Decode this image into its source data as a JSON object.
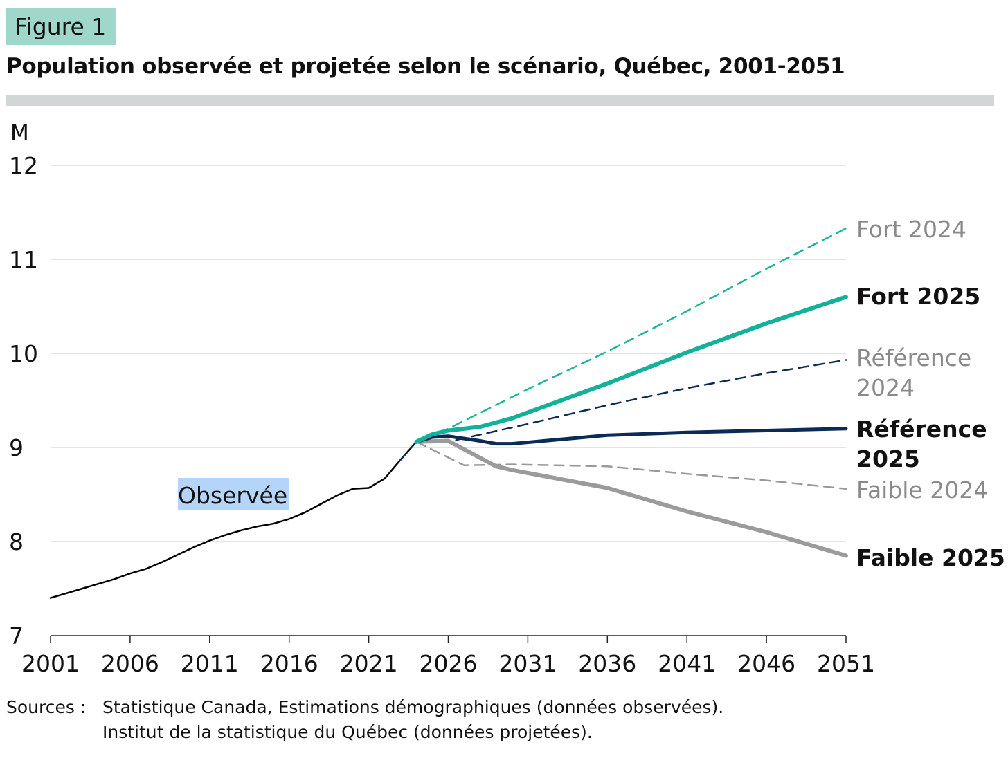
{
  "figure_label": "Figure 1",
  "chart_data": {
    "type": "line",
    "title": "Population observée et projetée selon le scénario, Québec, 2001-2051",
    "ylabel": "M",
    "xlabel": "",
    "ylim": [
      7,
      12
    ],
    "xlim": [
      2001,
      2051
    ],
    "yticks": [
      "7",
      "8",
      "9",
      "10",
      "11",
      "12"
    ],
    "xticks": [
      "2001",
      "2006",
      "2011",
      "2016",
      "2021",
      "2026",
      "2031",
      "2036",
      "2041",
      "2046",
      "2051"
    ],
    "grid": true,
    "annotation": "Observée",
    "series": [
      {
        "name": "Observée",
        "label": "Observée",
        "color": "#000000",
        "style": "solid",
        "width": 2.5,
        "x": [
          2001,
          2002,
          2003,
          2004,
          2005,
          2006,
          2007,
          2008,
          2009,
          2010,
          2011,
          2012,
          2013,
          2014,
          2015,
          2016,
          2017,
          2018,
          2019,
          2020,
          2021,
          2022,
          2023,
          2024
        ],
        "y": [
          7.4,
          7.45,
          7.5,
          7.55,
          7.6,
          7.66,
          7.71,
          7.78,
          7.86,
          7.94,
          8.01,
          8.07,
          8.12,
          8.16,
          8.19,
          8.24,
          8.31,
          8.4,
          8.49,
          8.56,
          8.57,
          8.67,
          8.87,
          9.06
        ]
      },
      {
        "name": "Fort 2024",
        "label": [
          "Fort 2024"
        ],
        "color": "#1ab39b",
        "style": "dashed",
        "width": 2.5,
        "x": [
          2023,
          2024,
          2026,
          2031,
          2036,
          2041,
          2046,
          2051
        ],
        "y": [
          8.87,
          9.06,
          9.2,
          9.62,
          10.02,
          10.45,
          10.9,
          11.33
        ]
      },
      {
        "name": "Référence 2024",
        "label": [
          "Référence",
          "2024"
        ],
        "color": "#0b2a55",
        "style": "dashed",
        "width": 2.5,
        "x": [
          2023,
          2024,
          2026,
          2031,
          2036,
          2041,
          2046,
          2051
        ],
        "y": [
          8.87,
          9.06,
          9.06,
          9.25,
          9.45,
          9.63,
          9.79,
          9.93
        ]
      },
      {
        "name": "Faible 2024",
        "label": [
          "Faible 2024"
        ],
        "color": "#999999",
        "style": "dashed",
        "width": 2.5,
        "x": [
          2024,
          2027,
          2030,
          2036,
          2041,
          2046,
          2051
        ],
        "y": [
          9.06,
          8.81,
          8.82,
          8.8,
          8.72,
          8.65,
          8.56
        ]
      },
      {
        "name": "Faible 2025",
        "label": [
          "Faible 2025"
        ],
        "color": "#9b9b9b",
        "style": "solid",
        "width": 6,
        "x": [
          2024,
          2026,
          2028,
          2029,
          2030,
          2036,
          2041,
          2046,
          2051
        ],
        "y": [
          9.06,
          9.07,
          8.89,
          8.8,
          8.76,
          8.57,
          8.32,
          8.1,
          7.85
        ]
      },
      {
        "name": "Référence 2025",
        "label": [
          "Référence",
          "2025"
        ],
        "color": "#0b2a55",
        "style": "solid",
        "width": 5,
        "x": [
          2024,
          2025,
          2026,
          2028,
          2029,
          2030,
          2036,
          2041,
          2046,
          2051
        ],
        "y": [
          9.06,
          9.11,
          9.12,
          9.07,
          9.04,
          9.04,
          9.13,
          9.16,
          9.18,
          9.2
        ]
      },
      {
        "name": "Fort 2025",
        "label": [
          "Fort 2025"
        ],
        "color": "#13b09a",
        "style": "solid",
        "width": 6,
        "x": [
          2024,
          2025,
          2026,
          2028,
          2030,
          2036,
          2041,
          2046,
          2051
        ],
        "y": [
          9.06,
          9.14,
          9.18,
          9.22,
          9.31,
          9.68,
          10.01,
          10.32,
          10.6
        ]
      }
    ]
  },
  "sources": {
    "label": "Sources :",
    "lines": [
      "Statistique Canada, Estimations démographiques (données observées).",
      "Institut de la statistique du Québec (données projetées)."
    ]
  }
}
